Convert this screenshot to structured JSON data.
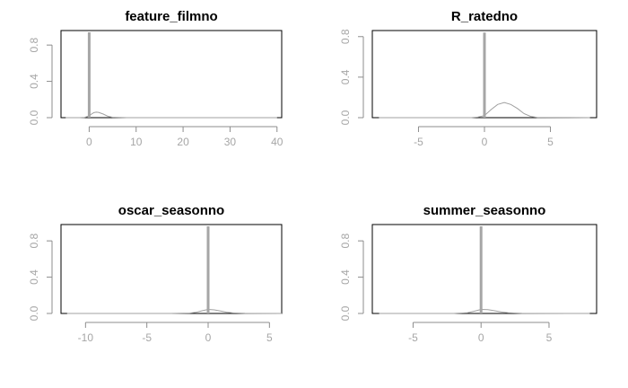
{
  "colors": {
    "background": "#ffffff",
    "curve": "#a0a0a0",
    "spike": "#a6a6a6",
    "axis": "#8c8c8c",
    "box": "#000000",
    "tick_text": "#a6a6a6",
    "title_text": "#000000"
  },
  "chart_data": [
    {
      "type": "line",
      "title": "feature_filmno",
      "xlabel": "",
      "ylabel": "",
      "xlim": [
        -6,
        41
      ],
      "ylim": [
        0,
        0.96
      ],
      "x_ticks": [
        0,
        10,
        20,
        30,
        40
      ],
      "y_ticks": [
        0.0,
        0.4,
        0.8
      ],
      "x_tick_labels": [
        "0",
        "10",
        "20",
        "30",
        "40"
      ],
      "y_tick_labels": [
        "0.0",
        "0.4",
        "0.8"
      ],
      "spike": {
        "x": 0,
        "height": 0.94
      },
      "series": [
        {
          "x": [
            -5,
            -2,
            -1,
            0,
            0.5,
            1,
            1.5,
            2,
            3,
            4,
            5,
            8,
            15,
            40
          ],
          "y": [
            0,
            0,
            0.003,
            0.02,
            0.04,
            0.055,
            0.06,
            0.058,
            0.04,
            0.015,
            0.004,
            0,
            0,
            0
          ]
        }
      ]
    },
    {
      "type": "line",
      "title": "R_ratedno",
      "xlabel": "",
      "ylabel": "",
      "xlim": [
        -8.5,
        8.5
      ],
      "ylim": [
        0,
        0.86
      ],
      "x_ticks": [
        -5,
        0,
        5
      ],
      "y_ticks": [
        0.0,
        0.4,
        0.8
      ],
      "x_tick_labels": [
        "-5",
        "0",
        "5"
      ],
      "y_tick_labels": [
        "0.0",
        "0.4",
        "0.8"
      ],
      "spike": {
        "x": 0,
        "height": 0.84
      },
      "series": [
        {
          "x": [
            -8,
            -1,
            -0.5,
            0,
            0.5,
            1,
            1.5,
            2,
            2.5,
            3,
            3.5,
            4,
            8
          ],
          "y": [
            0,
            0,
            0.005,
            0.02,
            0.08,
            0.13,
            0.15,
            0.13,
            0.09,
            0.04,
            0.012,
            0.002,
            0
          ]
        }
      ]
    },
    {
      "type": "line",
      "title": "oscar_seasonno",
      "xlabel": "",
      "ylabel": "",
      "xlim": [
        -12,
        6
      ],
      "ylim": [
        0,
        0.98
      ],
      "x_ticks": [
        -10,
        -5,
        0,
        5
      ],
      "y_ticks": [
        0.0,
        0.4,
        0.8
      ],
      "x_tick_labels": [
        "-10",
        "-5",
        "0",
        "5"
      ],
      "y_tick_labels": [
        "0.0",
        "0.4",
        "0.8"
      ],
      "spike": {
        "x": 0,
        "height": 0.96
      },
      "series": [
        {
          "x": [
            -11.5,
            -3,
            -1.5,
            -1,
            -0.5,
            0,
            0.5,
            1,
            1.5,
            2,
            3,
            6
          ],
          "y": [
            0,
            0,
            0.004,
            0.012,
            0.03,
            0.045,
            0.04,
            0.028,
            0.014,
            0.006,
            0.001,
            0
          ]
        }
      ]
    },
    {
      "type": "line",
      "title": "summer_seasonno",
      "xlabel": "",
      "ylabel": "",
      "xlim": [
        -8,
        8.5
      ],
      "ylim": [
        0,
        0.98
      ],
      "x_ticks": [
        -5,
        0,
        5
      ],
      "y_ticks": [
        0.0,
        0.4,
        0.8
      ],
      "x_tick_labels": [
        "-5",
        "0",
        "5"
      ],
      "y_tick_labels": [
        "0.0",
        "0.4",
        "0.8"
      ],
      "spike": {
        "x": 0,
        "height": 0.96
      },
      "series": [
        {
          "x": [
            -7.5,
            -2,
            -1,
            -0.5,
            0,
            0.5,
            1,
            1.5,
            2,
            3,
            8
          ],
          "y": [
            0,
            0,
            0.008,
            0.025,
            0.045,
            0.042,
            0.03,
            0.016,
            0.007,
            0.001,
            0
          ]
        }
      ]
    }
  ]
}
